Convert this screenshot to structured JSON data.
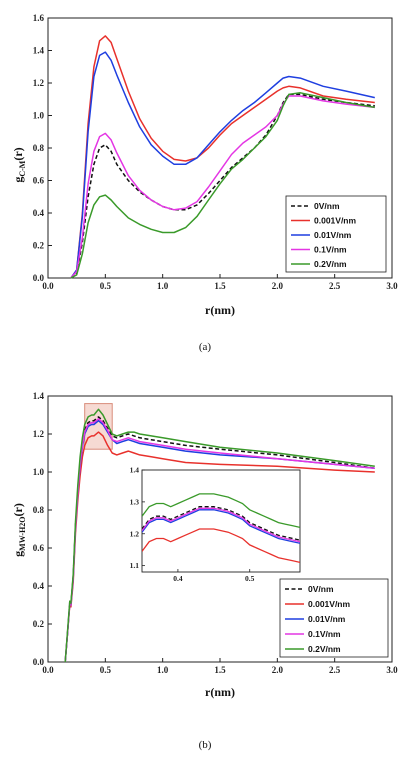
{
  "chart_data": [
    {
      "type": "line",
      "panel_label": "(a)",
      "xlabel": "r(nm)",
      "ylabel_main": "g",
      "ylabel_sub": "C-M",
      "ylabel_tail": "(r)",
      "xlim": [
        0.0,
        3.0
      ],
      "ylim": [
        0.0,
        1.6
      ],
      "xticks": [
        "0.0",
        "0.5",
        "1.0",
        "1.5",
        "2.0",
        "2.5",
        "3.0"
      ],
      "yticks": [
        "0.0",
        "0.2",
        "0.4",
        "0.6",
        "0.8",
        "1.0",
        "1.2",
        "1.4",
        "1.6"
      ],
      "legend_position": "lower-right",
      "series": [
        {
          "name": "0V/nm",
          "color": "#111111",
          "dash": true,
          "x": [
            0.2,
            0.25,
            0.3,
            0.35,
            0.4,
            0.45,
            0.5,
            0.55,
            0.6,
            0.7,
            0.8,
            0.9,
            1.0,
            1.1,
            1.2,
            1.3,
            1.4,
            1.5,
            1.6,
            1.7,
            1.8,
            1.9,
            2.0,
            2.05,
            2.1,
            2.2,
            2.4,
            2.6,
            2.85
          ],
          "y": [
            0.0,
            0.03,
            0.22,
            0.5,
            0.7,
            0.8,
            0.82,
            0.78,
            0.7,
            0.6,
            0.53,
            0.48,
            0.44,
            0.42,
            0.42,
            0.45,
            0.52,
            0.6,
            0.68,
            0.74,
            0.8,
            0.88,
            1.0,
            1.08,
            1.13,
            1.13,
            1.1,
            1.08,
            1.06
          ]
        },
        {
          "name": "0.001V/nm",
          "color": "#e8312c",
          "dash": false,
          "x": [
            0.2,
            0.25,
            0.3,
            0.35,
            0.4,
            0.45,
            0.5,
            0.55,
            0.6,
            0.7,
            0.8,
            0.9,
            1.0,
            1.1,
            1.2,
            1.3,
            1.4,
            1.5,
            1.6,
            1.7,
            1.8,
            1.9,
            2.0,
            2.05,
            2.1,
            2.2,
            2.4,
            2.6,
            2.85
          ],
          "y": [
            0.0,
            0.05,
            0.4,
            0.95,
            1.3,
            1.46,
            1.49,
            1.45,
            1.35,
            1.15,
            0.98,
            0.86,
            0.78,
            0.73,
            0.72,
            0.74,
            0.8,
            0.88,
            0.95,
            1.0,
            1.05,
            1.1,
            1.15,
            1.17,
            1.18,
            1.17,
            1.12,
            1.1,
            1.08
          ]
        },
        {
          "name": "0.01V/nm",
          "color": "#1f3fe0",
          "dash": false,
          "x": [
            0.2,
            0.25,
            0.3,
            0.35,
            0.4,
            0.45,
            0.5,
            0.55,
            0.6,
            0.7,
            0.8,
            0.9,
            1.0,
            1.1,
            1.2,
            1.3,
            1.4,
            1.5,
            1.6,
            1.7,
            1.8,
            1.9,
            2.0,
            2.05,
            2.1,
            2.2,
            2.4,
            2.6,
            2.85
          ],
          "y": [
            0.0,
            0.05,
            0.38,
            0.9,
            1.24,
            1.37,
            1.39,
            1.34,
            1.25,
            1.08,
            0.93,
            0.82,
            0.75,
            0.7,
            0.7,
            0.74,
            0.82,
            0.9,
            0.97,
            1.03,
            1.08,
            1.14,
            1.2,
            1.23,
            1.24,
            1.23,
            1.18,
            1.15,
            1.11
          ]
        },
        {
          "name": "0.1V/nm",
          "color": "#e436e4",
          "dash": false,
          "x": [
            0.2,
            0.25,
            0.3,
            0.35,
            0.4,
            0.45,
            0.5,
            0.55,
            0.6,
            0.7,
            0.8,
            0.9,
            1.0,
            1.1,
            1.2,
            1.3,
            1.4,
            1.5,
            1.6,
            1.7,
            1.8,
            1.9,
            2.0,
            2.05,
            2.1,
            2.2,
            2.4,
            2.6,
            2.85
          ],
          "y": [
            0.0,
            0.04,
            0.25,
            0.58,
            0.78,
            0.87,
            0.89,
            0.85,
            0.77,
            0.63,
            0.54,
            0.48,
            0.44,
            0.42,
            0.43,
            0.47,
            0.56,
            0.66,
            0.76,
            0.83,
            0.88,
            0.93,
            1.0,
            1.07,
            1.12,
            1.12,
            1.09,
            1.07,
            1.05
          ]
        },
        {
          "name": "0.2V/nm",
          "color": "#3a9a2a",
          "dash": false,
          "x": [
            0.2,
            0.25,
            0.3,
            0.35,
            0.4,
            0.45,
            0.5,
            0.55,
            0.6,
            0.7,
            0.8,
            0.9,
            1.0,
            1.1,
            1.2,
            1.3,
            1.4,
            1.5,
            1.6,
            1.7,
            1.8,
            1.9,
            2.0,
            2.05,
            2.1,
            2.2,
            2.4,
            2.6,
            2.85
          ],
          "y": [
            0.0,
            0.02,
            0.15,
            0.34,
            0.45,
            0.5,
            0.51,
            0.48,
            0.44,
            0.37,
            0.33,
            0.3,
            0.28,
            0.28,
            0.31,
            0.38,
            0.48,
            0.58,
            0.67,
            0.73,
            0.8,
            0.87,
            0.97,
            1.06,
            1.13,
            1.14,
            1.11,
            1.08,
            1.05
          ]
        }
      ]
    },
    {
      "type": "line",
      "panel_label": "(b)",
      "xlabel": "r(nm)",
      "ylabel_main": "g",
      "ylabel_sub": "MW-H2O",
      "ylabel_tail": "(r)",
      "xlim": [
        0.0,
        3.0
      ],
      "ylim": [
        0.0,
        1.4
      ],
      "xticks": [
        "0.0",
        "0.5",
        "1.0",
        "1.5",
        "2.0",
        "2.5",
        "3.0"
      ],
      "yticks": [
        "0.0",
        "0.2",
        "0.4",
        "0.6",
        "0.8",
        "1.0",
        "1.2",
        "1.4"
      ],
      "legend_position": "lower-right",
      "highlight_box": {
        "x": [
          0.32,
          0.56
        ],
        "y": [
          1.12,
          1.36
        ]
      },
      "inset": {
        "xlim": [
          0.35,
          0.57
        ],
        "ylim": [
          1.08,
          1.4
        ],
        "xticks": [
          "0.4",
          "0.5"
        ],
        "yticks": [
          "1.1",
          "1.2",
          "1.3",
          "1.4"
        ]
      },
      "series": [
        {
          "name": "0V/nm",
          "color": "#111111",
          "dash": true,
          "x": [
            0.15,
            0.17,
            0.19,
            0.2,
            0.22,
            0.24,
            0.26,
            0.28,
            0.3,
            0.32,
            0.35,
            0.38,
            0.4,
            0.44,
            0.48,
            0.52,
            0.56,
            0.6,
            0.65,
            0.7,
            0.75,
            0.8,
            0.9,
            1.0,
            1.2,
            1.5,
            2.0,
            2.5,
            2.85
          ],
          "y": [
            0.0,
            0.15,
            0.32,
            0.3,
            0.45,
            0.72,
            0.9,
            1.05,
            1.15,
            1.22,
            1.26,
            1.27,
            1.27,
            1.29,
            1.27,
            1.23,
            1.19,
            1.18,
            1.19,
            1.2,
            1.19,
            1.18,
            1.17,
            1.16,
            1.14,
            1.12,
            1.09,
            1.05,
            1.02
          ]
        },
        {
          "name": "0.001V/nm",
          "color": "#e8312c",
          "dash": false,
          "x": [
            0.15,
            0.17,
            0.19,
            0.2,
            0.22,
            0.24,
            0.26,
            0.28,
            0.3,
            0.32,
            0.35,
            0.38,
            0.4,
            0.44,
            0.48,
            0.52,
            0.56,
            0.6,
            0.65,
            0.7,
            0.75,
            0.8,
            0.9,
            1.0,
            1.2,
            1.5,
            2.0,
            2.5,
            2.85
          ],
          "y": [
            0.0,
            0.15,
            0.3,
            0.29,
            0.42,
            0.68,
            0.85,
            0.98,
            1.08,
            1.14,
            1.18,
            1.19,
            1.19,
            1.21,
            1.19,
            1.14,
            1.1,
            1.09,
            1.1,
            1.11,
            1.1,
            1.09,
            1.08,
            1.07,
            1.05,
            1.04,
            1.03,
            1.01,
            1.0
          ]
        },
        {
          "name": "0.01V/nm",
          "color": "#1f3fe0",
          "dash": false,
          "x": [
            0.15,
            0.17,
            0.19,
            0.2,
            0.22,
            0.24,
            0.26,
            0.28,
            0.3,
            0.32,
            0.35,
            0.38,
            0.4,
            0.44,
            0.48,
            0.52,
            0.56,
            0.6,
            0.65,
            0.7,
            0.75,
            0.8,
            0.9,
            1.0,
            1.2,
            1.5,
            2.0,
            2.5,
            2.85
          ],
          "y": [
            0.0,
            0.15,
            0.31,
            0.3,
            0.44,
            0.71,
            0.89,
            1.03,
            1.13,
            1.2,
            1.24,
            1.25,
            1.25,
            1.27,
            1.25,
            1.21,
            1.17,
            1.15,
            1.16,
            1.17,
            1.16,
            1.15,
            1.14,
            1.13,
            1.11,
            1.09,
            1.07,
            1.04,
            1.02
          ]
        },
        {
          "name": "0.1V/nm",
          "color": "#e436e4",
          "dash": false,
          "x": [
            0.15,
            0.17,
            0.19,
            0.2,
            0.22,
            0.24,
            0.26,
            0.28,
            0.3,
            0.32,
            0.35,
            0.38,
            0.4,
            0.44,
            0.48,
            0.52,
            0.56,
            0.6,
            0.65,
            0.7,
            0.75,
            0.8,
            0.9,
            1.0,
            1.2,
            1.5,
            2.0,
            2.5,
            2.85
          ],
          "y": [
            0.0,
            0.15,
            0.31,
            0.3,
            0.44,
            0.71,
            0.89,
            1.04,
            1.14,
            1.21,
            1.25,
            1.26,
            1.26,
            1.28,
            1.26,
            1.22,
            1.17,
            1.16,
            1.17,
            1.18,
            1.17,
            1.16,
            1.15,
            1.14,
            1.12,
            1.1,
            1.07,
            1.04,
            1.02
          ]
        },
        {
          "name": "0.2V/nm",
          "color": "#3a9a2a",
          "dash": false,
          "x": [
            0.15,
            0.17,
            0.19,
            0.2,
            0.22,
            0.24,
            0.26,
            0.28,
            0.3,
            0.32,
            0.35,
            0.38,
            0.4,
            0.44,
            0.48,
            0.52,
            0.56,
            0.6,
            0.65,
            0.7,
            0.75,
            0.8,
            0.9,
            1.0,
            1.2,
            1.5,
            2.0,
            2.5,
            2.85
          ],
          "y": [
            0.0,
            0.16,
            0.32,
            0.31,
            0.46,
            0.74,
            0.93,
            1.08,
            1.18,
            1.25,
            1.29,
            1.3,
            1.3,
            1.33,
            1.3,
            1.25,
            1.2,
            1.19,
            1.2,
            1.21,
            1.21,
            1.2,
            1.19,
            1.18,
            1.16,
            1.13,
            1.1,
            1.06,
            1.03
          ]
        }
      ]
    }
  ]
}
